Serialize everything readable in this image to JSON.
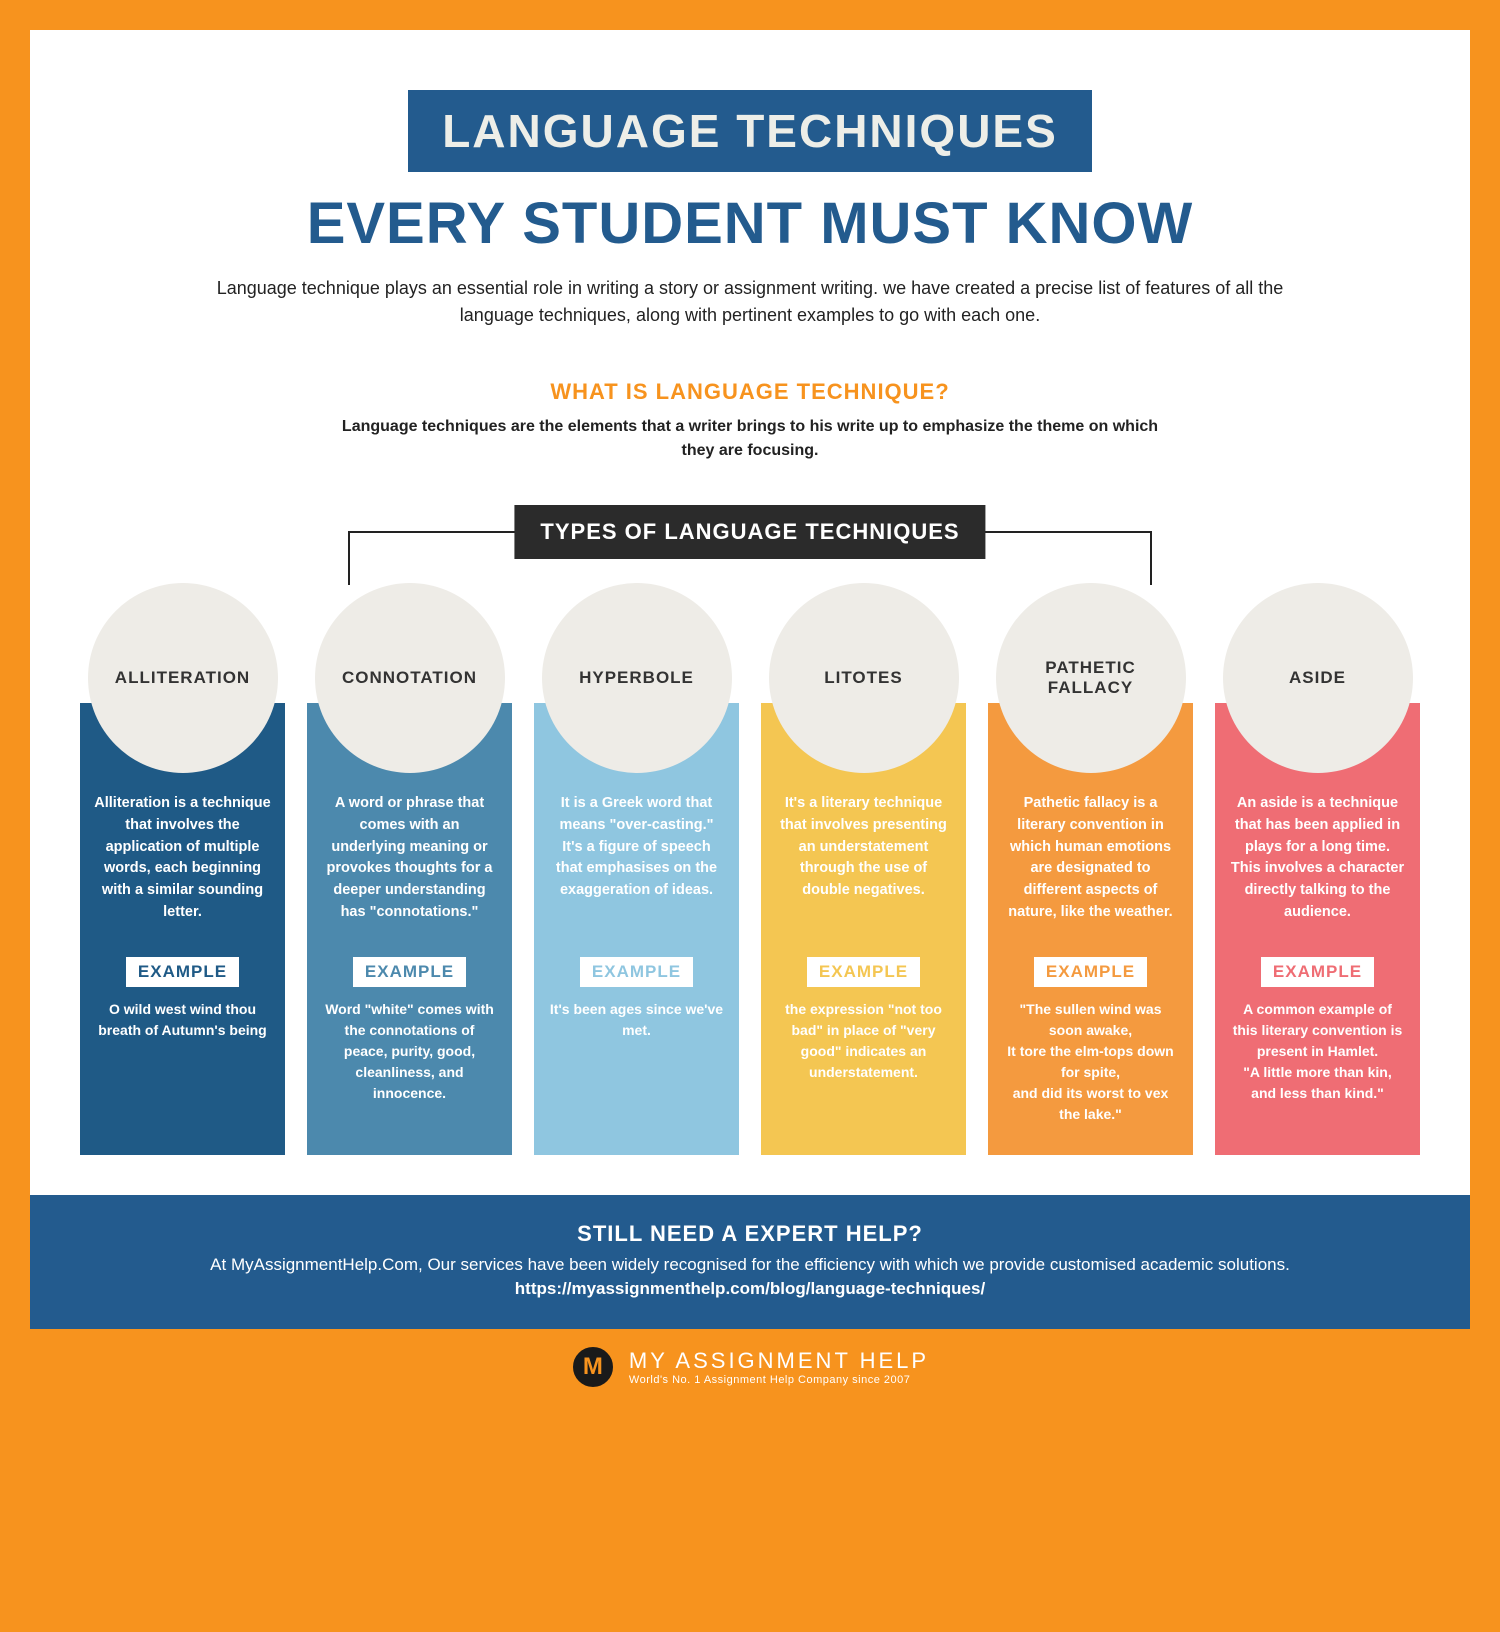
{
  "header": {
    "title_badge": "LANGUAGE TECHNIQUES",
    "subtitle": "EVERY STUDENT MUST KNOW",
    "intro": "Language technique plays an essential role in writing a story or assignment writing. we have created a precise list of features of all the language techniques, along with pertinent examples to go with each one.",
    "question": "WHAT IS LANGUAGE TECHNIQUE?",
    "answer": "Language techniques are the elements that a writer brings to his write up to emphasize the theme on which they are focusing."
  },
  "types_label": "TYPES OF LANGUAGE TECHNIQUES",
  "example_label": "EXAMPLE",
  "colors": {
    "frame": "#f7931e",
    "blue_dark": "#235b8e",
    "badge_dark": "#2b2b2b",
    "circle_fill": "#eeece7"
  },
  "cards": [
    {
      "title": "ALLITERATION",
      "bg": "#1f5a86",
      "example_text_color": "#1f5a86",
      "description": "Alliteration is a technique that involves the application of multiple words, each beginning with a similar sounding letter.",
      "example": "O wild west wind thou breath of Autumn's being"
    },
    {
      "title": "CONNOTATION",
      "bg": "#4c89ad",
      "example_text_color": "#4c89ad",
      "description": "A word or phrase that comes with an underlying meaning or provokes thoughts for a deeper understanding has \"connotations.\"",
      "example": "Word \"white\" comes with the connotations of peace, purity, good, cleanliness, and innocence."
    },
    {
      "title": "HYPERBOLE",
      "bg": "#8fc6e0",
      "example_text_color": "#8fc6e0",
      "description": "It is a Greek word that means \"over-casting.\" It's a figure of speech that emphasises on the exaggeration of ideas.",
      "example": "It's been ages since we've met."
    },
    {
      "title": "LITOTES",
      "bg": "#f4c652",
      "example_text_color": "#f4c652",
      "description": "It's a literary technique that involves presenting an understatement through the use of double negatives.",
      "example": "the expression \"not too bad\" in place of \"very good\" indicates an understatement."
    },
    {
      "title": "PATHETIC FALLACY",
      "bg": "#f49a3f",
      "example_text_color": "#f49a3f",
      "description": "Pathetic fallacy is a literary convention in which human emotions are designated to different aspects of nature, like the weather.",
      "example": "\"The sullen wind was soon awake,\nIt tore the elm-tops down for spite,\nand did its worst to vex the lake.\""
    },
    {
      "title": "ASIDE",
      "bg": "#ef6d74",
      "example_text_color": "#ef6d74",
      "description": "An aside is a technique that has been applied in plays for a long time. This involves a character directly talking to the audience.",
      "example": "A common example of this literary convention is present in Hamlet.\n\"A little more than kin, and less than kind.\""
    }
  ],
  "cta": {
    "title": "STILL NEED A EXPERT HELP?",
    "text": "At MyAssignmentHelp.Com, Our services have been widely recognised for the efficiency with which we provide customised academic solutions.",
    "link": "https://myassignmenthelp.com/blog/language-techniques/"
  },
  "footer": {
    "logo_letter": "M",
    "brand": "MY ASSIGNMENT HELP",
    "tag": "World's No. 1 Assignment Help Company since 2007"
  }
}
